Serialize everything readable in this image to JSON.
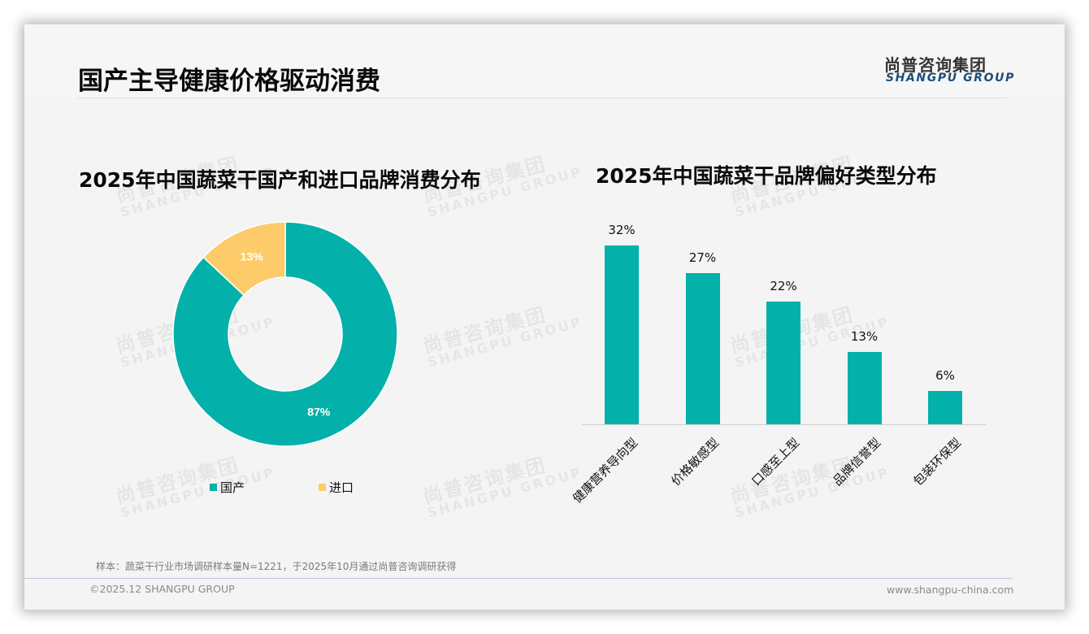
{
  "header": {
    "title": "国产主导健康价格驱动消费",
    "logo_cn": "尚普咨询集团",
    "logo_en": "SHANGPU GROUP"
  },
  "watermark": {
    "cn": "尚普咨询集团",
    "en": "SHANGPU GROUP"
  },
  "colors": {
    "teal": "#03b1aa",
    "yellow": "#fdcb6a",
    "background": "#f4f4f4",
    "logo_blue": "#1e4e79"
  },
  "chart_data": [
    {
      "type": "pie",
      "title": "2025年中国蔬菜干国产和进口品牌消费分布",
      "donut": true,
      "categories": [
        "国产",
        "进口"
      ],
      "values": [
        87,
        13
      ],
      "value_labels": [
        "87%",
        "13%"
      ],
      "colors": [
        "#03b1aa",
        "#fdcb6a"
      ],
      "legend_position": "bottom"
    },
    {
      "type": "bar",
      "title": "2025年中国蔬菜干品牌偏好类型分布",
      "categories": [
        "健康营养导向型",
        "价格敏感型",
        "口感至上型",
        "品牌信誉型",
        "包装环保型"
      ],
      "values": [
        32,
        27,
        22,
        13,
        6
      ],
      "value_labels": [
        "32%",
        "27%",
        "22%",
        "13%",
        "6%"
      ],
      "unit": "%",
      "color": "#03b1aa",
      "xlabel": "",
      "ylabel": "",
      "grid": false,
      "x_tick_rotation": -45
    }
  ],
  "footer": {
    "note": "样本：蔬菜干行业市场调研样本量N=1221，于2025年10月通过尚普咨询调研获得",
    "copyright": "©2025.12 SHANGPU GROUP",
    "website": "www.shangpu-china.com"
  }
}
